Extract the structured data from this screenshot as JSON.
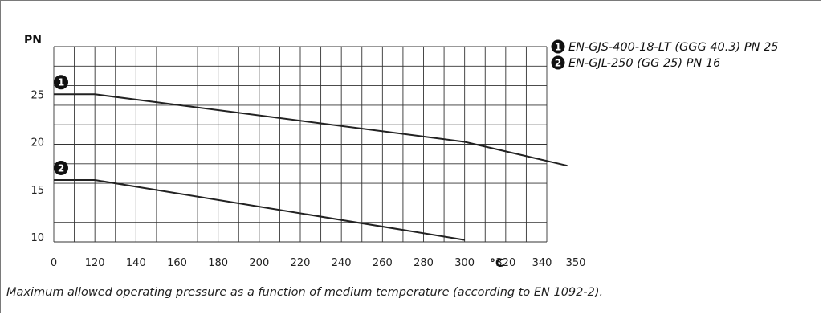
{
  "chart_data": {
    "type": "line",
    "ylabel": "PN",
    "xlabel": "°C",
    "x_ticks": [
      0,
      120,
      140,
      160,
      180,
      200,
      220,
      240,
      260,
      280,
      300,
      320,
      340,
      350
    ],
    "y_ticks": [
      10,
      15,
      20,
      25
    ],
    "ylim": [
      9.5,
      30
    ],
    "grid": true,
    "legend_position": "top-right",
    "series": [
      {
        "marker": "1",
        "name": "EN-GJS-400-18-LT (GGG 40.3) PN 25",
        "points": [
          [
            0,
            25
          ],
          [
            120,
            25
          ],
          [
            300,
            20
          ],
          [
            350,
            17.5
          ]
        ]
      },
      {
        "marker": "2",
        "name": "EN-GJL-250 (GG 25) PN 16",
        "points": [
          [
            0,
            16
          ],
          [
            120,
            16
          ],
          [
            300,
            9.7
          ]
        ]
      }
    ],
    "caption": "Maximum allowed operating pressure as a function of medium temperature (according to EN 1092-2)."
  }
}
